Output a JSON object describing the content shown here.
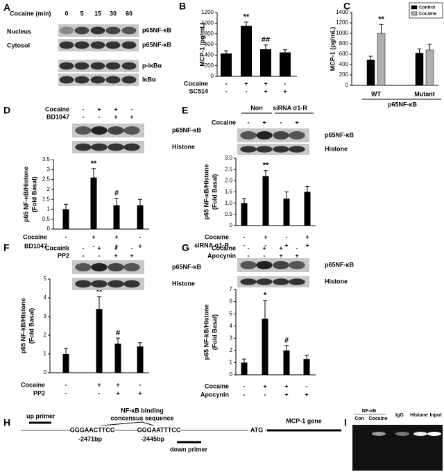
{
  "panel_labels": [
    "A",
    "B",
    "C",
    "D",
    "E",
    "F",
    "G",
    "H",
    "I"
  ],
  "panel_a": {
    "header": "Cocaine (min)",
    "times": [
      "0",
      "5",
      "15",
      "30",
      "60"
    ],
    "fractions": [
      "Nucleus",
      "Cytosol"
    ],
    "bands": [
      "p65NF-κB",
      "p65NF-κB",
      "p-IκBα",
      "IκBα"
    ]
  },
  "chart_data": [
    {
      "type": "bar",
      "ylabel": "MCP-1 (pg/mL)",
      "values": [
        430,
        950,
        510,
        450
      ],
      "errors": [
        50,
        70,
        80,
        50
      ],
      "sig": [
        null,
        "**",
        "##",
        null
      ],
      "color": "#000000",
      "ylim": [
        0,
        1200
      ],
      "yticks": [
        0,
        200,
        400,
        600,
        800,
        1000,
        1200
      ],
      "conditions": [
        {
          "name": "Cocaine",
          "signs": [
            "-",
            "+",
            "+",
            "-"
          ]
        },
        {
          "name": "SC514",
          "signs": [
            "-",
            "-",
            "+",
            "+"
          ]
        }
      ]
    },
    {
      "type": "grouped_bar",
      "ylabel": "MCP-1 (pg/mL)",
      "categories": [
        "WT",
        "Mutant"
      ],
      "group_label": "p65NF-κB",
      "series": [
        {
          "name": "Control",
          "color": "#000000",
          "values": [
            490,
            620
          ],
          "errors": [
            70,
            80
          ],
          "sig": [
            null,
            null
          ]
        },
        {
          "name": "Cocaine",
          "color": "#b0b0b0",
          "values": [
            1000,
            680
          ],
          "errors": [
            170,
            110
          ],
          "sig": [
            "**",
            null
          ]
        }
      ],
      "ylim": [
        0,
        1400
      ],
      "yticks": [
        0,
        200,
        400,
        600,
        800,
        1000,
        1200,
        1400
      ],
      "legend": "upper right"
    },
    {
      "type": "bar",
      "ylabel": [
        "p65 NF-κB/Histone",
        "(Fold Basal)"
      ],
      "values": [
        1,
        2.6,
        1.2,
        1.2
      ],
      "errors": [
        0.25,
        0.45,
        0.35,
        0.3
      ],
      "sig": [
        null,
        "**",
        "#",
        null
      ],
      "color": "#000000",
      "ylim": [
        0,
        3.5
      ],
      "yticks": [
        0,
        0.5,
        1,
        1.5,
        2,
        2.5,
        3,
        3.5
      ],
      "conditions": [
        {
          "name": "Cocaine",
          "signs": [
            "-",
            "+",
            "+",
            "-"
          ]
        },
        {
          "name": "BD1047",
          "signs": [
            "-",
            "-",
            "+",
            "+"
          ]
        }
      ],
      "blot": {
        "rows": [
          {
            "name": "Cocaine",
            "signs": [
              "-",
              "+",
              "+",
              "-"
            ]
          },
          {
            "name": "BD1047",
            "signs": [
              "-",
              "-",
              "+",
              "+"
            ]
          }
        ],
        "bands": [
          "p65NF-κB",
          "Histone"
        ]
      }
    },
    {
      "type": "bar",
      "ylabel": [
        "p65 NF-κB/Histone",
        "(Fold Basal)"
      ],
      "values": [
        1,
        2.2,
        1.2,
        1.5
      ],
      "errors": [
        0.2,
        0.25,
        0.3,
        0.25
      ],
      "sig": [
        null,
        "**",
        null,
        null
      ],
      "color": "#000000",
      "ylim": [
        0,
        3
      ],
      "yticks": [
        0,
        0.5,
        {
          "value": 1,
          "label": "1.0"
        },
        1.5,
        {
          "value": 2,
          "label": "2.0"
        },
        2.5,
        {
          "value": 3,
          "label": "3.0"
        }
      ],
      "conditions": [
        {
          "name": "Cocaine",
          "signs": [
            "-",
            "+",
            "-",
            "+"
          ]
        },
        {
          "name": "siRNA σ1-R",
          "signs": [
            "-",
            "-",
            "+",
            "+"
          ]
        }
      ],
      "blot": {
        "groups": [
          "Non",
          "siRNA σ1-R"
        ],
        "rows": [
          {
            "name": "Cocaine",
            "signs": [
              "-",
              "+",
              "-",
              "+"
            ]
          }
        ],
        "bands": [
          "p65NF-κB",
          "Histone"
        ]
      }
    },
    {
      "type": "bar",
      "ylabel": [
        "p65 NF-kB/Histone",
        "(Fold Basal)"
      ],
      "values": [
        1,
        3.4,
        1.55,
        1.4
      ],
      "errors": [
        0.3,
        0.65,
        0.3,
        0.2
      ],
      "sig": [
        null,
        "**",
        "#",
        null
      ],
      "color": "#000000",
      "ylim": [
        0,
        5
      ],
      "yticks": [
        0,
        1,
        2,
        3,
        4,
        5
      ],
      "conditions": [
        {
          "name": "Cocaine",
          "signs": [
            "-",
            "+",
            "+",
            "-"
          ]
        },
        {
          "name": "PP2",
          "signs": [
            "-",
            "-",
            "+",
            "+"
          ]
        }
      ],
      "blot": {
        "rows": [
          {
            "name": "Cocaine",
            "signs": [
              "-",
              "+",
              "+",
              "-"
            ]
          },
          {
            "name": "PP2",
            "signs": [
              "-",
              "-",
              "+",
              "+"
            ]
          }
        ],
        "bands": [
          "p65NF-κB",
          "Histone"
        ]
      }
    },
    {
      "type": "bar",
      "ylabel": [
        "p65 NF-kB/Histone",
        "(Fold Basal)"
      ],
      "values": [
        1,
        4.6,
        2,
        1.3
      ],
      "errors": [
        0.3,
        1.5,
        0.4,
        0.3
      ],
      "sig": [
        null,
        "*",
        "#",
        null
      ],
      "color": "#000000",
      "ylim": [
        0,
        7
      ],
      "yticks": [
        0,
        1,
        2,
        3,
        4,
        5,
        6,
        7
      ],
      "conditions": [
        {
          "name": "Cocaine",
          "signs": [
            "-",
            "+",
            "+",
            "-"
          ]
        },
        {
          "name": "Apocynin",
          "signs": [
            "-",
            "-",
            "+",
            "+"
          ]
        }
      ],
      "blot": {
        "rows": [
          {
            "name": "Cocaine",
            "signs": [
              "-",
              "+",
              "+",
              "-"
            ]
          },
          {
            "name": "Apocynin",
            "signs": [
              "-",
              "-",
              "+",
              "+"
            ]
          }
        ],
        "bands": [
          "p65NF-κB",
          "Histone"
        ]
      }
    }
  ],
  "panel_h": {
    "up_primer": "up primer",
    "binding": [
      "NF-κB binding",
      "concensus sequence"
    ],
    "site1": "GGGAACTTCC",
    "pos1": "-2471bp",
    "site2": "GGGAATTTCC",
    "pos2": "-2445bp",
    "down_primer": "down primer",
    "start": "ATG",
    "gene": "MCP-1 gene"
  },
  "panel_i": {
    "nfkb": "NF-κB",
    "lanes": [
      "Con",
      "Cocaine",
      "IgG",
      "Histone",
      "Input"
    ]
  }
}
